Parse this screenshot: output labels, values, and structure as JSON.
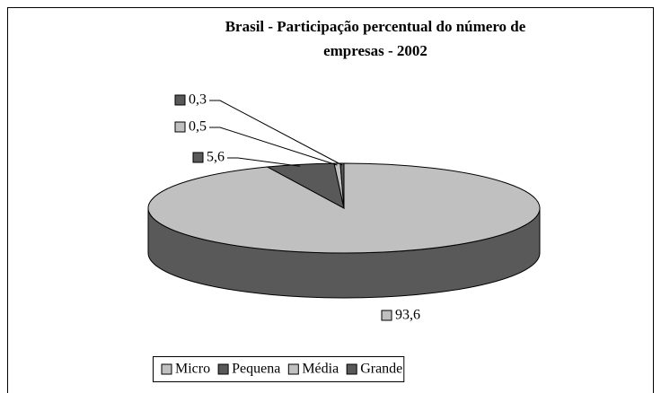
{
  "chart_data": {
    "type": "pie",
    "title": "Brasil - Participação percentual do número de empresas - 2002",
    "categories": [
      "Micro",
      "Pequena",
      "Média",
      "Grande"
    ],
    "values": [
      93.6,
      5.6,
      0.5,
      0.3
    ],
    "value_labels": [
      "93,6",
      "5,6",
      "0,5",
      "0,3"
    ],
    "colors": [
      "#c0c0c0",
      "#595959",
      "#c0c0c0",
      "#595959"
    ],
    "legend": "bottom"
  }
}
